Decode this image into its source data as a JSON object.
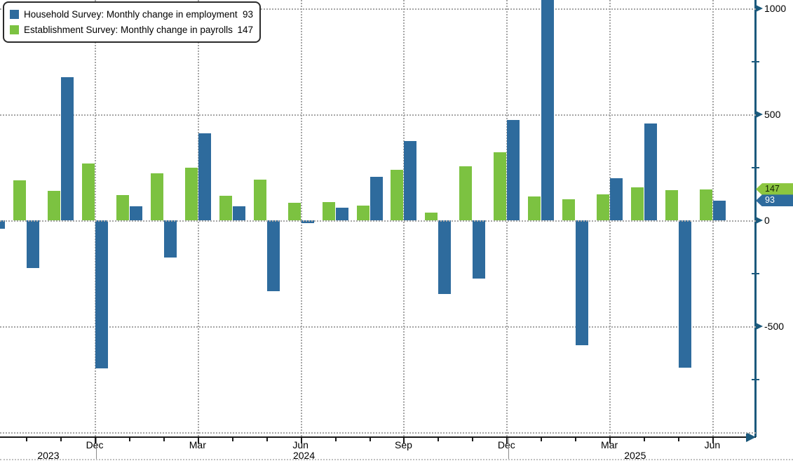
{
  "legend": {
    "items": [
      {
        "series": "household",
        "label": "Household Survey: Monthly change in employment",
        "value": "93"
      },
      {
        "series": "establishment",
        "label": "Establishment Survey: Monthly change in payrolls",
        "value": "147"
      }
    ]
  },
  "colors": {
    "household": "#2e6b9d",
    "establishment": "#7cc241",
    "badge_establishment": "#8cc63f",
    "badge_household": "#2e6b9d",
    "axis_teal": "#1c5a7d",
    "x_axis_black": "#1a1a1a",
    "gridline": "#a5a5a5",
    "text": "#000000"
  },
  "y_axis": {
    "major_ticks": [
      {
        "value": 1000,
        "label": "1000"
      },
      {
        "value": 500,
        "label": "500"
      },
      {
        "value": 0,
        "label": "0"
      },
      {
        "value": -500,
        "label": "-500"
      }
    ],
    "minor_tick_values": [
      750,
      250,
      -250,
      -750
    ],
    "gridline_values": [
      1000,
      500,
      0,
      -500,
      -1000
    ],
    "badges": [
      {
        "text": "147",
        "series": "establishment",
        "value": 147,
        "text_color": "#102000"
      },
      {
        "text": "93",
        "series": "household",
        "value": 93,
        "text_color": "#ffffff"
      }
    ]
  },
  "x_axis": {
    "tick_labels": [
      {
        "month_index": 3,
        "label": "Dec"
      },
      {
        "month_index": 6,
        "label": "Mar"
      },
      {
        "month_index": 9,
        "label": "Jun"
      },
      {
        "month_index": 12,
        "label": "Sep"
      },
      {
        "month_index": 15,
        "label": "Dec"
      },
      {
        "month_index": 18,
        "label": "Mar"
      },
      {
        "month_index": 21,
        "label": "Jun"
      }
    ],
    "year_labels": [
      {
        "label": "2023",
        "center_month_index": 1.65
      },
      {
        "label": "2024",
        "center_month_index": 9.1
      },
      {
        "label": "2025",
        "center_month_index": 18.75
      }
    ],
    "year_separator_month_indices": [
      3.05,
      15.05
    ]
  },
  "chart_data": {
    "type": "bar",
    "unit": "thousands of jobs, monthly change",
    "categories": [
      "Sep 2023",
      "Oct 2023",
      "Nov 2023",
      "Dec 2023",
      "Jan 2024",
      "Feb 2024",
      "Mar 2024",
      "Apr 2024",
      "May 2024",
      "Jun 2024",
      "Jul 2024",
      "Aug 2024",
      "Sep 2024",
      "Oct 2024",
      "Nov 2024",
      "Dec 2024",
      "Jan 2025",
      "Feb 2025",
      "Mar 2025",
      "Apr 2025",
      "May 2025",
      "Jun 2025"
    ],
    "series": [
      {
        "name": "Establishment Survey: Monthly change in payrolls",
        "key": "establishment",
        "latest_label": "147",
        "values": [
          null,
          190,
          140,
          267,
          119,
          223,
          248,
          115,
          192,
          83,
          86,
          70,
          237,
          37,
          256,
          320,
          113,
          98,
          121,
          154,
          141,
          147
        ]
      },
      {
        "name": "Household Survey: Monthly change in employment",
        "key": "household",
        "latest_label": "93",
        "values": [
          -40,
          -225,
          675,
          -700,
          66,
          -176,
          410,
          66,
          -334,
          -14,
          61,
          204,
          374,
          -349,
          -276,
          474,
          2234,
          -588,
          200,
          457,
          -696,
          93
        ]
      }
    ],
    "ylim_visible": [
      -1030,
      1040
    ],
    "y_major_gridlines": [
      1000,
      500,
      0,
      -500,
      -1000
    ],
    "legend_position": "top-left",
    "notes": "Jan 2025 household bar extends beyond the visible top of the chart (clipped); Sep 2023 establishment bar is outside the left edge of the plot."
  }
}
